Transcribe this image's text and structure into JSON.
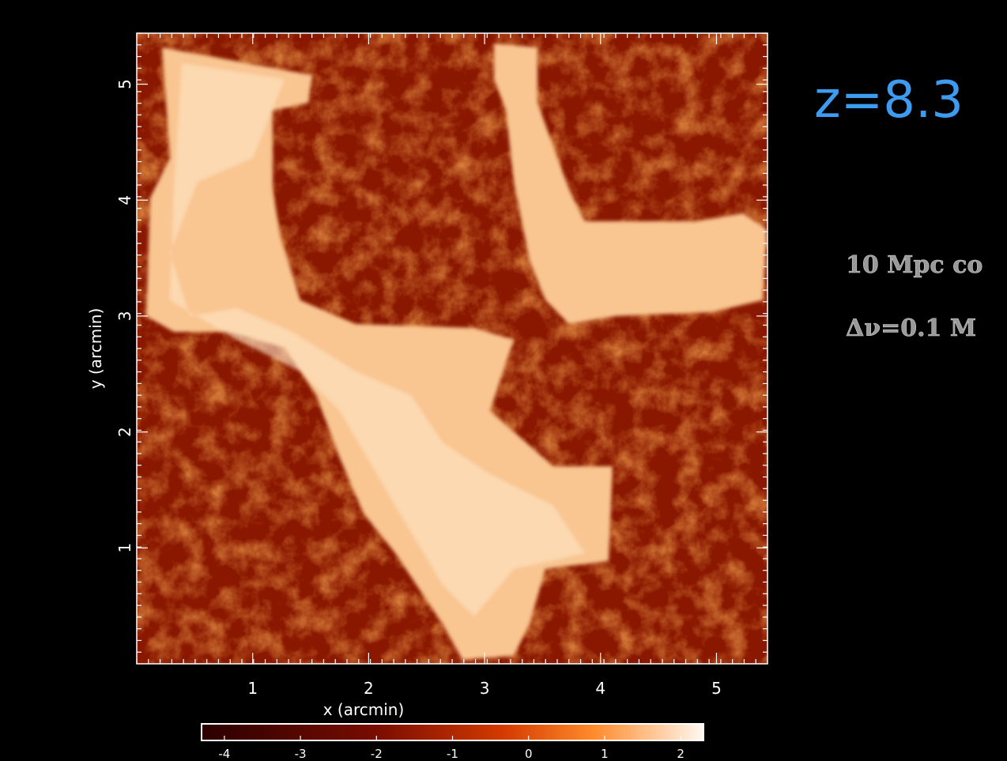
{
  "chart_data": {
    "type": "heatmap",
    "title": "z=8.3",
    "annotations": [
      "10 Mpc co",
      "Δν=0.1 M"
    ],
    "xlabel": "x (arcmin)",
    "ylabel": "y (arcmin)",
    "xlim": [
      0,
      5.44
    ],
    "xticks": [
      1,
      2,
      3,
      4,
      5
    ],
    "ylim": [
      0,
      5.44
    ],
    "yticks": [
      1,
      2,
      3,
      4,
      5
    ],
    "colorbar": {
      "lim": [
        -4.3,
        2.3
      ],
      "ticks": [
        -4,
        -3,
        -2,
        -1,
        0,
        1,
        2
      ]
    }
  }
}
